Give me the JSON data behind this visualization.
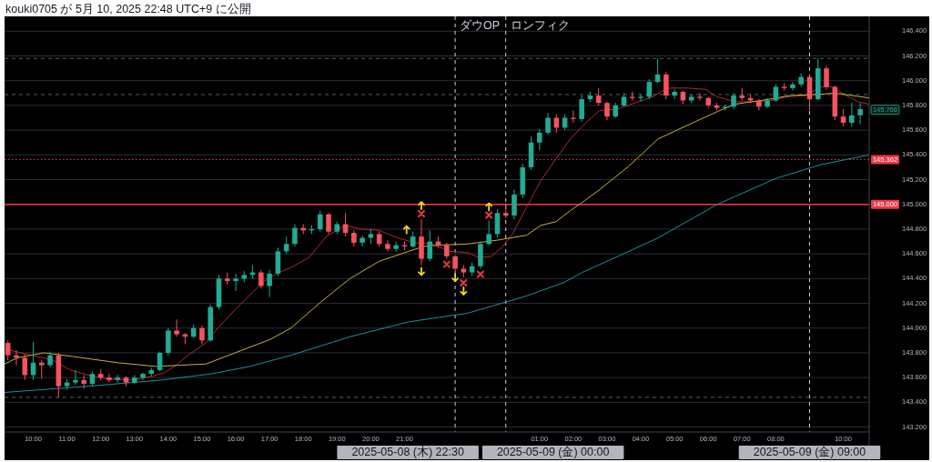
{
  "chart_data": {
    "type": "candlestick",
    "annotations": [
      "kouki0705 が 5月 10, 2025 22:48 UTC+9 に公開",
      "2025-05-08 (木) 22:30",
      "2025-05-09 (金) 00:00",
      "2025-05-09 (金) 09:00",
      {
        "text": "145.766",
        "y": 145.766
      }
    ],
    "xlim": [
      "2025-05-08T09:09",
      "2025-05-09T10:46"
    ],
    "ylim": [
      143.16,
      146.52
    ],
    "xticks": [
      {
        "value": "2025-05-08T10:00",
        "label": "10:00"
      },
      {
        "value": "2025-05-08T11:00",
        "label": "11:00"
      },
      {
        "value": "2025-05-08T12:00",
        "label": "12:00"
      },
      {
        "value": "2025-05-08T13:00",
        "label": "13:00"
      },
      {
        "value": "2025-05-08T14:00",
        "label": "14:00"
      },
      {
        "value": "2025-05-08T15:00",
        "label": "15:00"
      },
      {
        "value": "2025-05-08T16:00",
        "label": "16:00"
      },
      {
        "value": "2025-05-08T17:00",
        "label": "17:00"
      },
      {
        "value": "2025-05-08T18:00",
        "label": "18:00"
      },
      {
        "value": "2025-05-08T19:00",
        "label": "19:00"
      },
      {
        "value": "2025-05-08T20:00",
        "label": "20:00"
      },
      {
        "value": "2025-05-08T21:00",
        "label": "21:00"
      },
      {
        "value": "2025-05-09T01:00",
        "label": "01:00"
      },
      {
        "value": "2025-05-09T02:00",
        "label": "02:00"
      },
      {
        "value": "2025-05-09T03:00",
        "label": "03:00"
      },
      {
        "value": "2025-05-09T04:00",
        "label": "04:00"
      },
      {
        "value": "2025-05-09T05:00",
        "label": "05:00"
      },
      {
        "value": "2025-05-09T06:00",
        "label": "06:00"
      },
      {
        "value": "2025-05-09T07:00",
        "label": "07:00"
      },
      {
        "value": "2025-05-09T08:00",
        "label": "08:00"
      },
      {
        "value": "2025-05-09T10:00",
        "label": "10:00"
      }
    ],
    "yticks": [
      {
        "value": 143.2,
        "label": "143.200"
      },
      {
        "value": 143.4,
        "label": "143.400"
      },
      {
        "value": 143.6,
        "label": "143.600"
      },
      {
        "value": 143.8,
        "label": "143.800"
      },
      {
        "value": 144,
        "label": "144.000"
      },
      {
        "value": 144.2,
        "label": "144.200"
      },
      {
        "value": 144.4,
        "label": "144.400"
      },
      {
        "value": 144.6,
        "label": "144.600"
      },
      {
        "value": 144.8,
        "label": "144.800"
      },
      {
        "value": 145,
        "label": "145.000"
      },
      {
        "value": 145.2,
        "label": "145.200"
      },
      {
        "value": 145.4,
        "label": "145.400"
      },
      {
        "value": 145.6,
        "label": "145.600"
      },
      {
        "value": 145.8,
        "label": "145.800"
      },
      {
        "value": 146,
        "label": "146.000"
      },
      {
        "value": 146.2,
        "label": "146.200"
      },
      {
        "value": 146.4,
        "label": "146.400"
      }
    ],
    "grid": "y",
    "ref_lines": [
      {
        "axis": "y",
        "value": 145,
        "label": "145.000",
        "color": "#f23645",
        "line_style": "solid"
      },
      {
        "axis": "y",
        "value": 145.362,
        "label": "145.362",
        "color": "#f23645",
        "line_style": "dotted"
      },
      {
        "axis": "y",
        "value": 146.18,
        "color": "#5d606b",
        "line_style": "dashed"
      },
      {
        "axis": "y",
        "value": 145.888,
        "color": "#5d606b",
        "line_style": "dashed"
      },
      {
        "axis": "y",
        "value": 143.44,
        "color": "#5d606b",
        "line_style": "dashed"
      },
      {
        "axis": "x",
        "value": "2025-05-08T22:30",
        "label": "ダウOP",
        "color": "#d1d4dc",
        "line_style": "dashed"
      },
      {
        "axis": "x",
        "value": "2025-05-09T00:00",
        "label": "ロンフィク",
        "color": "#d1d4dc",
        "line_style": "dashed"
      },
      {
        "axis": "x",
        "value": "2025-05-09T09:00",
        "color": "#d1d4dc",
        "line_style": "dashed"
      }
    ],
    "series": [
      {
        "type": "line",
        "color": "#b22833",
        "x": [
          "2025-05-08T09:09",
          "2025-05-08T09:58",
          "2025-05-08T10:35",
          "2025-05-08T11:06",
          "2025-05-08T11:38",
          "2025-05-08T12:09",
          "2025-05-08T12:56",
          "2025-05-08T13:32",
          "2025-05-08T13:53",
          "2025-05-08T14:14",
          "2025-05-08T14:35",
          "2025-05-08T15:07",
          "2025-05-08T15:28",
          "2025-05-08T15:59",
          "2025-05-08T16:30",
          "2025-05-08T16:51",
          "2025-05-08T17:12",
          "2025-05-08T17:38",
          "2025-05-08T18:10",
          "2025-05-08T18:41",
          "2025-05-08T19:13",
          "2025-05-08T19:44",
          "2025-05-08T20:15",
          "2025-05-08T20:47",
          "2025-05-08T21:18",
          "2025-05-08T21:49",
          "2025-05-08T22:20",
          "2025-05-08T22:52",
          "2025-05-08T23:13",
          "2025-05-08T23:34",
          "2025-05-08T23:55",
          "2025-05-09T00:12",
          "2025-05-09T00:36",
          "2025-05-09T01:02",
          "2025-05-09T01:28",
          "2025-05-09T01:55",
          "2025-05-09T02:20",
          "2025-05-09T02:47",
          "2025-05-09T03:18",
          "2025-05-09T03:49",
          "2025-05-09T04:21",
          "2025-05-09T04:47",
          "2025-05-09T05:23",
          "2025-05-09T05:55",
          "2025-05-09T06:16",
          "2025-05-09T06:47",
          "2025-05-09T07:19",
          "2025-05-09T07:50",
          "2025-05-09T08:21",
          "2025-05-09T08:53",
          "2025-05-09T09:19",
          "2025-05-09T09:40",
          "2025-05-09T10:01",
          "2025-05-09T10:26",
          "2025-05-09T10:46"
        ],
        "values": [
          143.83,
          143.78,
          143.74,
          143.66,
          143.62,
          143.59,
          143.58,
          143.61,
          143.64,
          143.7,
          143.78,
          143.88,
          144.0,
          144.15,
          144.29,
          144.38,
          144.44,
          144.49,
          144.57,
          144.74,
          144.83,
          144.8,
          144.79,
          144.73,
          144.69,
          144.68,
          144.62,
          144.61,
          144.57,
          144.58,
          144.66,
          144.76,
          144.97,
          145.19,
          145.36,
          145.53,
          145.65,
          145.76,
          145.77,
          145.82,
          145.87,
          145.94,
          145.94,
          145.93,
          145.87,
          145.83,
          145.83,
          145.84,
          145.87,
          145.88,
          145.95,
          145.95,
          145.89,
          145.83,
          145.81
        ]
      },
      {
        "type": "line",
        "color": "#c8b13c",
        "x": [
          "2025-05-08T09:09",
          "2025-05-08T09:32",
          "2025-05-08T10:19",
          "2025-05-08T11:11",
          "2025-05-08T12:30",
          "2025-05-08T13:38",
          "2025-05-08T15:07",
          "2025-05-08T15:59",
          "2025-05-08T17:02",
          "2025-05-08T17:38",
          "2025-05-08T18:31",
          "2025-05-08T19:23",
          "2025-05-08T20:15",
          "2025-05-08T21:07",
          "2025-05-08T21:34",
          "2025-05-08T22:00",
          "2025-05-08T22:52",
          "2025-05-08T23:44",
          "2025-05-09T00:10",
          "2025-05-09T00:37",
          "2025-05-09T01:02",
          "2025-05-09T01:29",
          "2025-05-09T01:55",
          "2025-05-09T02:20",
          "2025-05-09T02:47",
          "2025-05-09T03:39",
          "2025-05-09T04:31",
          "2025-05-09T05:23",
          "2025-05-09T06:16",
          "2025-05-09T06:47",
          "2025-05-09T07:34",
          "2025-05-09T08:26",
          "2025-05-09T09:19",
          "2025-05-09T09:45",
          "2025-05-09T10:46"
        ],
        "values": [
          143.71,
          143.76,
          143.8,
          143.77,
          143.72,
          143.69,
          143.71,
          143.8,
          143.91,
          144.0,
          144.21,
          144.4,
          144.54,
          144.62,
          144.66,
          144.67,
          144.68,
          144.71,
          144.73,
          144.75,
          144.83,
          144.86,
          144.95,
          145.03,
          145.12,
          145.31,
          145.53,
          145.64,
          145.75,
          145.81,
          145.84,
          145.88,
          145.89,
          145.9,
          145.86
        ]
      },
      {
        "type": "line",
        "color": "#1e90a0",
        "x": [
          "2025-05-08T09:09",
          "2025-05-08T11:38",
          "2025-05-08T13:48",
          "2025-05-08T15:17",
          "2025-05-08T16:25",
          "2025-05-08T17:38",
          "2025-05-08T19:23",
          "2025-05-08T21:07",
          "2025-05-08T22:52",
          "2025-05-09T00:37",
          "2025-05-09T01:44",
          "2025-05-09T02:16",
          "2025-05-09T03:29",
          "2025-05-09T04:31",
          "2025-05-09T04:58",
          "2025-05-09T06:16",
          "2025-05-09T08:00",
          "2025-05-09T09:19",
          "2025-05-09T10:46"
        ],
        "values": [
          143.48,
          143.53,
          143.58,
          143.63,
          143.69,
          143.78,
          143.93,
          144.05,
          144.12,
          144.26,
          144.37,
          144.45,
          144.6,
          144.73,
          144.8,
          145.0,
          145.21,
          145.32,
          145.4
        ]
      },
      {
        "x": [
          "2025-05-08T09:15",
          "2025-05-08T09:30",
          "2025-05-08T09:45",
          "2025-05-08T10:00",
          "2025-05-08T10:15",
          "2025-05-08T10:30",
          "2025-05-08T10:45",
          "2025-05-08T11:00",
          "2025-05-08T11:15",
          "2025-05-08T11:30",
          "2025-05-08T11:45",
          "2025-05-08T12:00",
          "2025-05-08T12:15",
          "2025-05-08T12:30",
          "2025-05-08T12:45",
          "2025-05-08T13:00",
          "2025-05-08T13:15",
          "2025-05-08T13:30",
          "2025-05-08T13:45",
          "2025-05-08T14:00",
          "2025-05-08T14:15",
          "2025-05-08T14:30",
          "2025-05-08T14:45",
          "2025-05-08T15:00",
          "2025-05-08T15:15",
          "2025-05-08T15:30",
          "2025-05-08T15:45",
          "2025-05-08T16:00",
          "2025-05-08T16:15",
          "2025-05-08T16:30",
          "2025-05-08T16:45",
          "2025-05-08T17:00",
          "2025-05-08T17:15",
          "2025-05-08T17:30",
          "2025-05-08T17:45",
          "2025-05-08T18:00",
          "2025-05-08T18:15",
          "2025-05-08T18:30",
          "2025-05-08T18:45",
          "2025-05-08T19:00",
          "2025-05-08T19:15",
          "2025-05-08T19:30",
          "2025-05-08T19:45",
          "2025-05-08T20:00",
          "2025-05-08T20:15",
          "2025-05-08T20:30",
          "2025-05-08T20:45",
          "2025-05-08T21:00",
          "2025-05-08T21:15",
          "2025-05-08T21:30",
          "2025-05-08T21:45",
          "2025-05-08T22:00",
          "2025-05-08T22:15",
          "2025-05-08T22:30",
          "2025-05-08T22:45",
          "2025-05-08T23:00",
          "2025-05-08T23:15",
          "2025-05-08T23:30",
          "2025-05-08T23:45",
          "2025-05-09T00:00",
          "2025-05-09T00:15",
          "2025-05-09T00:30",
          "2025-05-09T00:45",
          "2025-05-09T01:00",
          "2025-05-09T01:15",
          "2025-05-09T01:30",
          "2025-05-09T01:45",
          "2025-05-09T02:00",
          "2025-05-09T02:15",
          "2025-05-09T02:30",
          "2025-05-09T02:45",
          "2025-05-09T03:00",
          "2025-05-09T03:15",
          "2025-05-09T03:30",
          "2025-05-09T03:45",
          "2025-05-09T04:00",
          "2025-05-09T04:15",
          "2025-05-09T04:30",
          "2025-05-09T04:45",
          "2025-05-09T05:00",
          "2025-05-09T05:15",
          "2025-05-09T05:30",
          "2025-05-09T05:45",
          "2025-05-09T06:00",
          "2025-05-09T06:15",
          "2025-05-09T06:30",
          "2025-05-09T06:45",
          "2025-05-09T07:00",
          "2025-05-09T07:15",
          "2025-05-09T07:30",
          "2025-05-09T07:45",
          "2025-05-09T08:00",
          "2025-05-09T08:15",
          "2025-05-09T08:30",
          "2025-05-09T08:45",
          "2025-05-09T09:00",
          "2025-05-09T09:15",
          "2025-05-09T09:30",
          "2025-05-09T09:45",
          "2025-05-09T10:00",
          "2025-05-09T10:15",
          "2025-05-09T10:30"
        ],
        "ohlc": [
          [
            143.88,
            143.9,
            143.74,
            143.78
          ],
          [
            143.78,
            143.82,
            143.7,
            143.76
          ],
          [
            143.76,
            143.79,
            143.58,
            143.62
          ],
          [
            143.62,
            143.89,
            143.58,
            143.72
          ],
          [
            143.72,
            143.74,
            143.59,
            143.7
          ],
          [
            143.7,
            143.81,
            143.68,
            143.78
          ],
          [
            143.78,
            143.8,
            143.44,
            143.53
          ],
          [
            143.53,
            143.59,
            143.5,
            143.56
          ],
          [
            143.56,
            143.66,
            143.54,
            143.58
          ],
          [
            143.58,
            143.62,
            143.51,
            143.55
          ],
          [
            143.55,
            143.65,
            143.53,
            143.63
          ],
          [
            143.63,
            143.67,
            143.58,
            143.6
          ],
          [
            143.6,
            143.63,
            143.56,
            143.58
          ],
          [
            143.58,
            143.62,
            143.56,
            143.6
          ],
          [
            143.6,
            143.61,
            143.53,
            143.56
          ],
          [
            143.56,
            143.62,
            143.55,
            143.6
          ],
          [
            143.6,
            143.64,
            143.58,
            143.63
          ],
          [
            143.63,
            143.68,
            143.61,
            143.66
          ],
          [
            143.66,
            143.81,
            143.65,
            143.8
          ],
          [
            143.8,
            144.0,
            143.78,
            143.98
          ],
          [
            143.98,
            144.07,
            143.93,
            143.95
          ],
          [
            143.95,
            143.96,
            143.87,
            143.93
          ],
          [
            143.93,
            144.03,
            143.92,
            144.0
          ],
          [
            144.0,
            144.02,
            143.87,
            143.9
          ],
          [
            143.9,
            144.19,
            143.89,
            144.17
          ],
          [
            144.17,
            144.43,
            144.15,
            144.4
          ],
          [
            144.4,
            144.45,
            144.35,
            144.38
          ],
          [
            144.38,
            144.44,
            144.3,
            144.4
          ],
          [
            144.4,
            144.46,
            144.37,
            144.43
          ],
          [
            144.43,
            144.51,
            144.4,
            144.45
          ],
          [
            144.45,
            144.47,
            144.32,
            144.34
          ],
          [
            144.34,
            144.47,
            144.25,
            144.44
          ],
          [
            144.44,
            144.65,
            144.42,
            144.62
          ],
          [
            144.62,
            144.74,
            144.6,
            144.68
          ],
          [
            144.68,
            144.84,
            144.66,
            144.81
          ],
          [
            144.81,
            144.84,
            144.76,
            144.79
          ],
          [
            144.79,
            144.83,
            144.76,
            144.8
          ],
          [
            144.8,
            144.95,
            144.78,
            144.92
          ],
          [
            144.92,
            144.93,
            144.76,
            144.78
          ],
          [
            144.78,
            144.86,
            144.76,
            144.84
          ],
          [
            144.84,
            144.93,
            144.74,
            144.77
          ],
          [
            144.77,
            144.79,
            144.66,
            144.69
          ],
          [
            144.69,
            144.75,
            144.66,
            144.73
          ],
          [
            144.73,
            144.8,
            144.68,
            144.76
          ],
          [
            144.76,
            144.78,
            144.66,
            144.68
          ],
          [
            144.68,
            144.71,
            144.62,
            144.64
          ],
          [
            144.64,
            144.7,
            144.62,
            144.67
          ],
          [
            144.67,
            144.7,
            144.63,
            144.66
          ],
          [
            144.66,
            144.78,
            144.65,
            144.74
          ],
          [
            144.74,
            144.88,
            144.51,
            144.56
          ],
          [
            144.56,
            144.79,
            144.54,
            144.7
          ],
          [
            144.7,
            144.74,
            144.65,
            144.67
          ],
          [
            144.67,
            144.69,
            144.56,
            144.58
          ],
          [
            144.58,
            144.59,
            144.46,
            144.48
          ],
          [
            144.48,
            144.51,
            144.41,
            144.45
          ],
          [
            144.45,
            144.53,
            144.42,
            144.5
          ],
          [
            144.5,
            144.7,
            144.48,
            144.68
          ],
          [
            144.68,
            144.87,
            144.67,
            144.76
          ],
          [
            144.76,
            144.96,
            144.73,
            144.93
          ],
          [
            144.93,
            145.01,
            144.89,
            144.91
          ],
          [
            144.91,
            145.12,
            144.88,
            145.08
          ],
          [
            145.08,
            145.33,
            145.05,
            145.3
          ],
          [
            145.3,
            145.55,
            145.28,
            145.5
          ],
          [
            145.5,
            145.61,
            145.44,
            145.58
          ],
          [
            145.58,
            145.74,
            145.56,
            145.7
          ],
          [
            145.7,
            145.73,
            145.58,
            145.62
          ],
          [
            145.62,
            145.73,
            145.6,
            145.7
          ],
          [
            145.7,
            145.76,
            145.66,
            145.69
          ],
          [
            145.69,
            145.88,
            145.67,
            145.85
          ],
          [
            145.85,
            145.91,
            145.83,
            145.88
          ],
          [
            145.88,
            145.94,
            145.8,
            145.82
          ],
          [
            145.82,
            145.83,
            145.68,
            145.71
          ],
          [
            145.71,
            145.82,
            145.7,
            145.8
          ],
          [
            145.8,
            145.9,
            145.79,
            145.87
          ],
          [
            145.87,
            145.91,
            145.84,
            145.86
          ],
          [
            145.86,
            145.89,
            145.83,
            145.87
          ],
          [
            145.87,
            146.01,
            145.85,
            145.99
          ],
          [
            145.99,
            146.18,
            145.98,
            146.05
          ],
          [
            146.05,
            146.07,
            145.85,
            145.88
          ],
          [
            145.88,
            145.93,
            145.85,
            145.91
          ],
          [
            145.91,
            145.92,
            145.81,
            145.84
          ],
          [
            145.84,
            145.89,
            145.82,
            145.87
          ],
          [
            145.87,
            145.9,
            145.84,
            145.86
          ],
          [
            145.86,
            145.87,
            145.78,
            145.8
          ],
          [
            145.8,
            145.82,
            145.76,
            145.78
          ],
          [
            145.78,
            145.81,
            145.76,
            145.79
          ],
          [
            145.79,
            145.9,
            145.77,
            145.88
          ],
          [
            145.88,
            145.94,
            145.84,
            145.86
          ],
          [
            145.86,
            145.89,
            145.82,
            145.84
          ],
          [
            145.84,
            145.85,
            145.76,
            145.79
          ],
          [
            145.79,
            145.86,
            145.78,
            145.84
          ],
          [
            145.84,
            145.97,
            145.83,
            145.95
          ],
          [
            145.95,
            145.98,
            145.92,
            145.94
          ],
          [
            145.94,
            145.99,
            145.92,
            145.97
          ],
          [
            145.97,
            146.06,
            145.95,
            146.03
          ],
          [
            146.03,
            146.04,
            145.76,
            145.85
          ],
          [
            145.85,
            146.18,
            145.84,
            146.1
          ],
          [
            146.1,
            146.12,
            145.93,
            145.95
          ],
          [
            145.95,
            145.96,
            145.68,
            145.71
          ],
          [
            145.71,
            145.77,
            145.63,
            145.66
          ],
          [
            145.66,
            145.82,
            145.63,
            145.72
          ],
          [
            145.72,
            145.82,
            145.65,
            145.77
          ]
        ],
        "colors": [
          "#f7525f",
          "#f7525f",
          "#f7525f",
          "#22ab94",
          "#f7525f",
          "#22ab94",
          "#f7525f",
          "#22ab94",
          "#22ab94",
          "#f7525f",
          "#22ab94",
          "#f7525f",
          "#f7525f",
          "#22ab94",
          "#f7525f",
          "#22ab94",
          "#22ab94",
          "#22ab94",
          "#22ab94",
          "#22ab94",
          "#f7525f",
          "#f7525f",
          "#22ab94",
          "#f7525f",
          "#22ab94",
          "#22ab94",
          "#f7525f",
          "#22ab94",
          "#22ab94",
          "#22ab94",
          "#f7525f",
          "#22ab94",
          "#22ab94",
          "#22ab94",
          "#22ab94",
          "#f7525f",
          "#22ab94",
          "#22ab94",
          "#f7525f",
          "#22ab94",
          "#f7525f",
          "#f7525f",
          "#22ab94",
          "#22ab94",
          "#f7525f",
          "#f7525f",
          "#22ab94",
          "#f7525f",
          "#22ab94",
          "#f7525f",
          "#22ab94",
          "#f7525f",
          "#f7525f",
          "#f7525f",
          "#f7525f",
          "#22ab94",
          "#22ab94",
          "#22ab94",
          "#22ab94",
          "#f7525f",
          "#22ab94",
          "#22ab94",
          "#22ab94",
          "#22ab94",
          "#22ab94",
          "#f7525f",
          "#22ab94",
          "#f7525f",
          "#22ab94",
          "#22ab94",
          "#f7525f",
          "#f7525f",
          "#22ab94",
          "#22ab94",
          "#f7525f",
          "#22ab94",
          "#22ab94",
          "#22ab94",
          "#f7525f",
          "#22ab94",
          "#f7525f",
          "#22ab94",
          "#f7525f",
          "#f7525f",
          "#f7525f",
          "#22ab94",
          "#22ab94",
          "#f7525f",
          "#f7525f",
          "#f7525f",
          "#22ab94",
          "#22ab94",
          "#f7525f",
          "#22ab94",
          "#22ab94",
          "#f7525f",
          "#22ab94",
          "#f7525f",
          "#f7525f",
          "#f7525f",
          "#22ab94",
          "#22ab94"
        ]
      }
    ]
  }
}
